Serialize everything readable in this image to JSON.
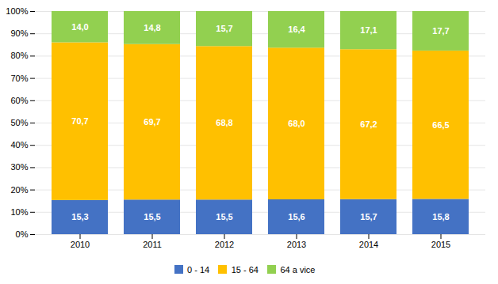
{
  "chart_data": {
    "type": "bar",
    "stacked": true,
    "categories": [
      "2010",
      "2011",
      "2012",
      "2013",
      "2014",
      "2015"
    ],
    "series": [
      {
        "name": "0 - 14",
        "color": "#4472C4",
        "values": [
          15.3,
          15.5,
          15.5,
          15.6,
          15.7,
          15.8
        ],
        "value_labels": [
          "15,3",
          "15,5",
          "15,5",
          "15,6",
          "15,7",
          "15,8"
        ]
      },
      {
        "name": "15 - 64",
        "color": "#FFC000",
        "values": [
          70.7,
          69.7,
          68.8,
          68.0,
          67.2,
          66.5
        ],
        "value_labels": [
          "70,7",
          "69,7",
          "68,8",
          "68,0",
          "67,2",
          "66,5"
        ]
      },
      {
        "name": "64 a vice",
        "color": "#92D050",
        "values": [
          14.0,
          14.8,
          15.7,
          16.4,
          17.1,
          17.7
        ],
        "value_labels": [
          "14,0",
          "14,8",
          "15,7",
          "16,4",
          "17,1",
          "17,7"
        ]
      }
    ],
    "ylim": [
      0,
      100
    ],
    "yticks": [
      {
        "value": 0,
        "label": "0%"
      },
      {
        "value": 10,
        "label": "10%"
      },
      {
        "value": 20,
        "label": "20%"
      },
      {
        "value": 30,
        "label": "30%"
      },
      {
        "value": 40,
        "label": "40%"
      },
      {
        "value": 50,
        "label": "50%"
      },
      {
        "value": 60,
        "label": "60%"
      },
      {
        "value": 70,
        "label": "70%"
      },
      {
        "value": 80,
        "label": "80%"
      },
      {
        "value": 90,
        "label": "90%"
      },
      {
        "value": 100,
        "label": "100%"
      }
    ],
    "grid": true,
    "data_labels": true,
    "legend": "bottom"
  }
}
